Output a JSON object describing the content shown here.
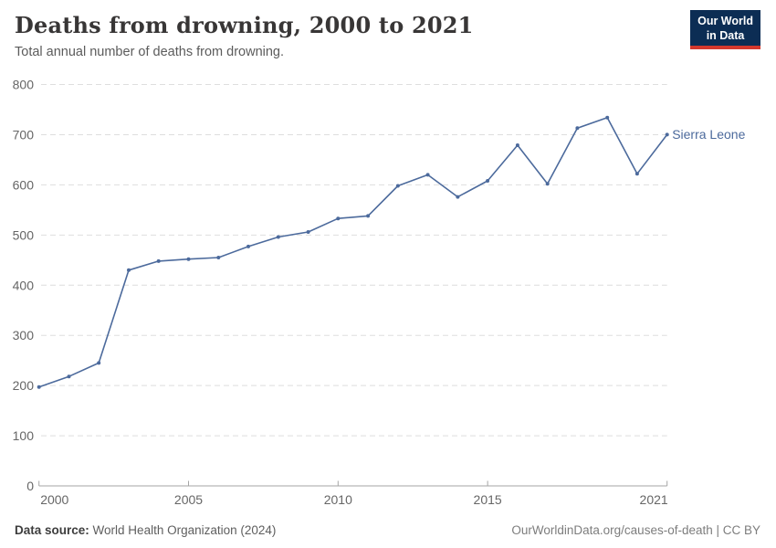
{
  "header": {
    "title": "Deaths from drowning, 2000 to 2021",
    "subtitle": "Total annual number of deaths from drowning.",
    "logo": {
      "line1": "Our World",
      "line2": "in Data"
    }
  },
  "footer": {
    "source_label": "Data source:",
    "source_value": "World Health Organization (2024)",
    "license": "OurWorldinData.org/causes-of-death | CC BY"
  },
  "colors": {
    "series": "#4c6a9c",
    "grid": "#dedede",
    "axis": "#a5a5a5",
    "tick_label": "#666666",
    "logo_bg": "#0c2d54",
    "logo_accent": "#d4382d"
  },
  "chart_data": {
    "type": "line",
    "title": "Deaths from drowning, 2000 to 2021",
    "subtitle": "Total annual number of deaths from drowning.",
    "xlabel": "",
    "ylabel": "",
    "x": [
      2000,
      2001,
      2002,
      2003,
      2004,
      2005,
      2006,
      2007,
      2008,
      2009,
      2010,
      2011,
      2012,
      2013,
      2014,
      2015,
      2016,
      2017,
      2018,
      2019,
      2020,
      2021
    ],
    "series": [
      {
        "name": "Sierra Leone",
        "color": "#4c6a9c",
        "values": [
          197,
          218,
          245,
          430,
          448,
          452,
          455,
          477,
          496,
          506,
          533,
          538,
          598,
          620,
          576,
          608,
          679,
          602,
          713,
          734,
          622,
          700
        ]
      }
    ],
    "ylim": [
      0,
      800
    ],
    "yticks": [
      0,
      100,
      200,
      300,
      400,
      500,
      600,
      700,
      800
    ],
    "xticks": [
      2000,
      2005,
      2010,
      2015,
      2021
    ],
    "grid": true,
    "grid_style": "dashed-horizontal",
    "legend": "end-of-line-label",
    "end_label": "Sierra Leone"
  }
}
